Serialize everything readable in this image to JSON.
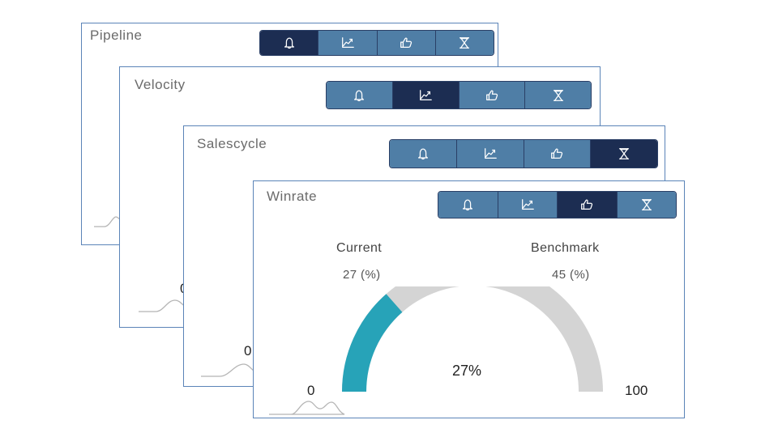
{
  "cards": [
    {
      "id": "pipeline",
      "title": "Pipeline",
      "active_tab": 0,
      "visible_value": ""
    },
    {
      "id": "velocity",
      "title": "Velocity",
      "active_tab": 1,
      "visible_value": "0"
    },
    {
      "id": "salescycle",
      "title": "Salescycle",
      "active_tab": 3,
      "visible_value": "0"
    },
    {
      "id": "winrate",
      "title": "Winrate",
      "active_tab": 2,
      "visible_value": ""
    }
  ],
  "toolbar_icons": [
    "bell-icon",
    "trend-chart-icon",
    "thumbs-up-icon",
    "hourglass-icon"
  ],
  "winrate": {
    "current_label": "Current",
    "current_value": "27 (%)",
    "benchmark_label": "Benchmark",
    "benchmark_value": "45 (%)",
    "gauge_value_label": "27%",
    "gauge_min": "0",
    "gauge_max": "100",
    "gauge_fraction": 0.27
  },
  "colors": {
    "gauge_fill": "#27a3b8",
    "gauge_track": "#d4d4d4",
    "toolbar_button": "#4f7ea6",
    "toolbar_active": "#1c2d52",
    "card_border": "#5b84b8"
  }
}
